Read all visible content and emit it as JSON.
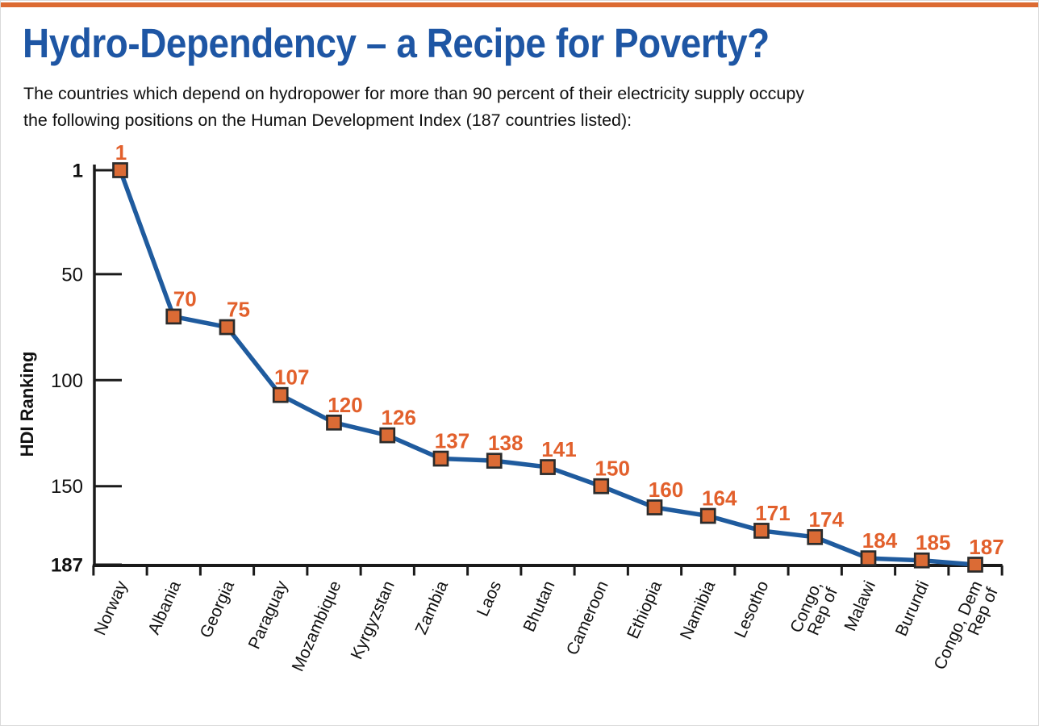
{
  "page": {
    "accent_bar_color": "#DC6A32",
    "background_color": "#FFFFFF"
  },
  "chart_data": {
    "type": "line",
    "title": "Hydro-Dependency – a Recipe for Poverty?",
    "subtitle": "The countries which depend on hydropower for more than 90 percent of their electricity supply occupy\nthe following positions on the Human Development Index (187 countries listed):",
    "ylabel": "HDI Ranking",
    "xlabel": "",
    "categories": [
      "Norway",
      "Albania",
      "Georgia",
      "Paraguay",
      "Mozambique",
      "Kyrgyzstan",
      "Zambia",
      "Laos",
      "Bhutan",
      "Cameroon",
      "Ethiopia",
      "Namibia",
      "Lesotho",
      "Congo,\nRep of",
      "Malawi",
      "Burundi",
      "Congo, Dem\nRep of"
    ],
    "values": [
      1,
      70,
      75,
      107,
      120,
      126,
      137,
      138,
      141,
      150,
      160,
      164,
      171,
      174,
      184,
      185,
      187
    ],
    "point_labels": [
      "1",
      "70",
      "75",
      "107",
      "120",
      "126",
      "137",
      "138",
      "141",
      "150",
      "160",
      "164",
      "171",
      "174",
      "184",
      "185",
      "187"
    ],
    "y_ticks": [
      1,
      50,
      100,
      150,
      187
    ],
    "y_ticks_bold": [
      1,
      187
    ],
    "ylim": [
      1,
      187
    ],
    "y_axis_inverted": true,
    "grid": false,
    "legend": null,
    "marker_shape": "square",
    "colors": {
      "line": "#1F5B9E",
      "marker_fill": "#DB6B35",
      "marker_border": "#2B2B2B",
      "point_label": "#E2602C",
      "axis": "#1A1A1A",
      "tick_label": "#111111",
      "title": "#1E56A4",
      "subtitle": "#111111"
    }
  }
}
